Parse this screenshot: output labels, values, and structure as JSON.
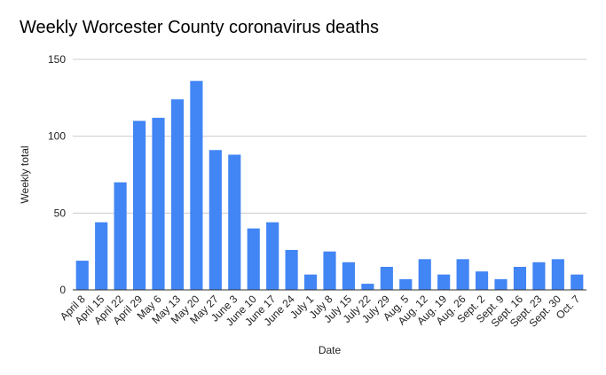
{
  "chart_data": {
    "type": "bar",
    "title": "Weekly Worcester County coronavirus deaths",
    "xlabel": "Date",
    "ylabel": "Weekly total",
    "ylim": [
      0,
      150
    ],
    "yticks": [
      0,
      50,
      100,
      150
    ],
    "grid": true,
    "bar_color": "#4285f4",
    "categories": [
      "April 8",
      "April 15",
      "April 22",
      "April 29",
      "May 6",
      "May 13",
      "May 20",
      "May 27",
      "June 3",
      "June 10",
      "June 17",
      "June 24",
      "July 1",
      "July 8",
      "July 15",
      "July 22",
      "July 29",
      "Aug. 5",
      "Aug. 12",
      "Aug. 19",
      "Aug. 26",
      "Sept. 2",
      "Sept. 9",
      "Sept. 16",
      "Sept. 23",
      "Sept. 30",
      "Oct. 7"
    ],
    "values": [
      19,
      44,
      70,
      110,
      112,
      124,
      136,
      91,
      88,
      40,
      44,
      26,
      10,
      25,
      18,
      4,
      15,
      7,
      20,
      10,
      20,
      12,
      7,
      15,
      18,
      20,
      10
    ]
  }
}
